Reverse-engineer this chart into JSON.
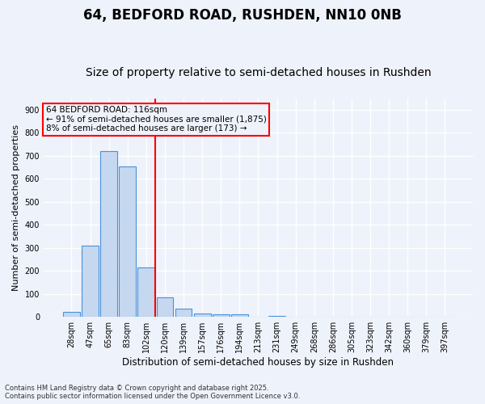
{
  "title1": "64, BEDFORD ROAD, RUSHDEN, NN10 0NB",
  "title2": "Size of property relative to semi-detached houses in Rushden",
  "xlabel": "Distribution of semi-detached houses by size in Rushden",
  "ylabel": "Number of semi-detached properties",
  "categories": [
    "28sqm",
    "47sqm",
    "65sqm",
    "83sqm",
    "102sqm",
    "120sqm",
    "139sqm",
    "157sqm",
    "176sqm",
    "194sqm",
    "213sqm",
    "231sqm",
    "249sqm",
    "268sqm",
    "286sqm",
    "305sqm",
    "323sqm",
    "342sqm",
    "360sqm",
    "379sqm",
    "397sqm"
  ],
  "values": [
    22,
    310,
    722,
    655,
    215,
    85,
    37,
    14,
    13,
    11,
    0,
    6,
    0,
    0,
    0,
    0,
    0,
    0,
    0,
    0,
    0
  ],
  "bar_color": "#c5d8f0",
  "bar_edge_color": "#4a90d9",
  "vline_x_index": 5,
  "vline_color": "red",
  "annotation_title": "64 BEDFORD ROAD: 116sqm",
  "annotation_line1": "← 91% of semi-detached houses are smaller (1,875)",
  "annotation_line2": "8% of semi-detached houses are larger (173) →",
  "annotation_box_color": "red",
  "ylim": [
    0,
    950
  ],
  "yticks": [
    0,
    100,
    200,
    300,
    400,
    500,
    600,
    700,
    800,
    900
  ],
  "footer1": "Contains HM Land Registry data © Crown copyright and database right 2025.",
  "footer2": "Contains public sector information licensed under the Open Government Licence v3.0.",
  "bg_color": "#eef2fb",
  "grid_color": "#ffffff",
  "title1_fontsize": 12,
  "title2_fontsize": 10,
  "xlabel_fontsize": 8.5,
  "ylabel_fontsize": 8,
  "tick_fontsize": 7,
  "footer_fontsize": 6,
  "ann_fontsize": 7.5
}
